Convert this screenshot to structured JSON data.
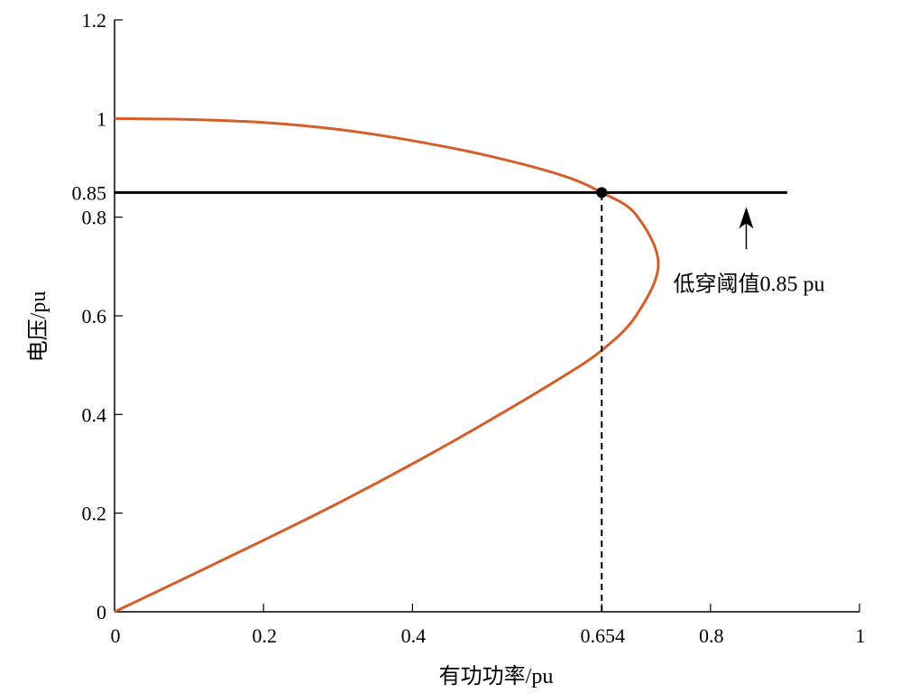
{
  "chart_data": {
    "type": "line",
    "title": "",
    "xlabel": "有功功率/pu",
    "ylabel": "电压/pu",
    "xlim": [
      0,
      1
    ],
    "ylim": [
      0,
      1.2
    ],
    "x_ticks": [
      {
        "value": 0,
        "label": "0"
      },
      {
        "value": 0.2,
        "label": "0.2"
      },
      {
        "value": 0.4,
        "label": "0.4"
      },
      {
        "value": 0.654,
        "label": "0.654"
      },
      {
        "value": 0.8,
        "label": "0.8"
      },
      {
        "value": 1,
        "label": "1"
      }
    ],
    "y_ticks": [
      {
        "value": 0,
        "label": "0"
      },
      {
        "value": 0.2,
        "label": "0.2"
      },
      {
        "value": 0.4,
        "label": "0.4"
      },
      {
        "value": 0.6,
        "label": "0.6"
      },
      {
        "value": 0.8,
        "label": "0.8"
      },
      {
        "value": 0.85,
        "label": "0.85"
      },
      {
        "value": 1,
        "label": "1"
      },
      {
        "value": 1.2,
        "label": "1.2"
      }
    ],
    "grid": false,
    "series": [
      {
        "color": "#d35f2a",
        "x": [
          0,
          0.1,
          0.2,
          0.3,
          0.4,
          0.5,
          0.6,
          0.654,
          0.7,
          0.73,
          0.7,
          0.654,
          0.6,
          0.5,
          0.4,
          0.3,
          0.2,
          0.1,
          0
        ],
        "y": [
          0,
          0.072,
          0.145,
          0.22,
          0.3,
          0.385,
          0.475,
          0.53,
          0.6,
          0.705,
          0.805,
          0.85,
          0.885,
          0.925,
          0.955,
          0.978,
          0.992,
          0.998,
          1.0
        ]
      }
    ],
    "threshold_line": {
      "y": 0.85,
      "x_start": 0,
      "x_end": 0.903,
      "color": "#000000"
    },
    "guide_lines": [
      {
        "from": [
          0,
          0.85
        ],
        "to": [
          0.654,
          0.85
        ],
        "style": "dashed"
      },
      {
        "from": [
          0.654,
          0
        ],
        "to": [
          0.654,
          0.85
        ],
        "style": "dashed"
      }
    ],
    "marker": {
      "x": 0.654,
      "y": 0.85
    },
    "annotation": {
      "text": "低穿阈值0.85 pu",
      "arrow_tip": [
        0.848,
        0.85
      ],
      "arrow_tail": [
        0.848,
        0.735
      ],
      "text_at": [
        0.75,
        0.665
      ]
    }
  }
}
